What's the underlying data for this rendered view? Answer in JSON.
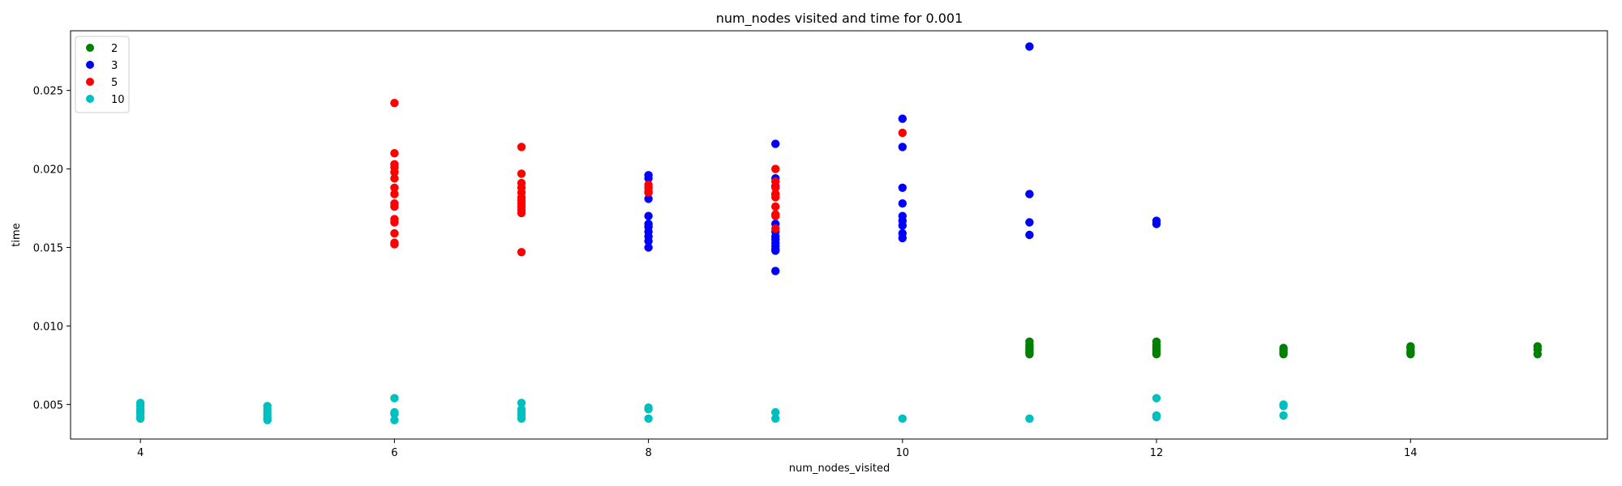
{
  "chart_data": {
    "type": "scatter",
    "title": "num_nodes visited and time for 0.001",
    "xlabel": "num_nodes_visited",
    "ylabel": "time",
    "xlim": [
      3.45,
      15.55
    ],
    "ylim": [
      0.0028,
      0.0288
    ],
    "xticks": [
      4,
      6,
      8,
      10,
      12,
      14
    ],
    "yticks": [
      0.005,
      0.01,
      0.015,
      0.02,
      0.025
    ],
    "ytick_labels": [
      "0.005",
      "0.010",
      "0.015",
      "0.020",
      "0.025"
    ],
    "grid": false,
    "legend": "top-left",
    "series": [
      {
        "name": "2",
        "color": "#008000",
        "x": [
          11,
          11,
          11,
          11,
          11,
          11,
          11,
          11,
          12,
          12,
          12,
          12,
          12,
          12,
          12,
          12,
          13,
          13,
          13,
          13,
          13,
          14,
          14,
          14,
          14,
          14,
          15,
          15,
          15
        ],
        "y": [
          0.009,
          0.0088,
          0.0087,
          0.0086,
          0.0085,
          0.0084,
          0.0083,
          0.0082,
          0.009,
          0.0088,
          0.0087,
          0.0086,
          0.0085,
          0.0084,
          0.0083,
          0.0082,
          0.0086,
          0.0085,
          0.0084,
          0.0083,
          0.0082,
          0.0087,
          0.0086,
          0.0084,
          0.0083,
          0.0082,
          0.0087,
          0.0085,
          0.0082
        ]
      },
      {
        "name": "3",
        "color": "#0000ff",
        "x": [
          8,
          8,
          8,
          8,
          8,
          8,
          8,
          8,
          8,
          8,
          8,
          9,
          9,
          9,
          9,
          9,
          9,
          9,
          9,
          9,
          9,
          9,
          9,
          9,
          10,
          10,
          10,
          10,
          10,
          10,
          10,
          10,
          10,
          11,
          11,
          11,
          11,
          12,
          12
        ],
        "y": [
          0.0196,
          0.0194,
          0.0185,
          0.0181,
          0.017,
          0.0165,
          0.0163,
          0.016,
          0.0157,
          0.0154,
          0.015,
          0.0216,
          0.0194,
          0.0189,
          0.0184,
          0.0165,
          0.016,
          0.0157,
          0.0155,
          0.0153,
          0.0151,
          0.0149,
          0.0148,
          0.0135,
          0.0232,
          0.0214,
          0.0188,
          0.0178,
          0.017,
          0.0167,
          0.0164,
          0.0159,
          0.0156,
          0.0278,
          0.0184,
          0.0166,
          0.0158,
          0.0167,
          0.0165
        ]
      },
      {
        "name": "5",
        "color": "#ff0000",
        "x": [
          6,
          6,
          6,
          6,
          6,
          6,
          6,
          6,
          6,
          6,
          6,
          6,
          6,
          6,
          6,
          7,
          7,
          7,
          7,
          7,
          7,
          7,
          7,
          7,
          7,
          7,
          7,
          8,
          8,
          8,
          8,
          9,
          9,
          9,
          9,
          9,
          9,
          9,
          9,
          9,
          10
        ],
        "y": [
          0.0242,
          0.021,
          0.0203,
          0.0201,
          0.0198,
          0.0194,
          0.0188,
          0.0184,
          0.0178,
          0.0176,
          0.0168,
          0.0166,
          0.0159,
          0.0153,
          0.0152,
          0.0214,
          0.0197,
          0.0191,
          0.0188,
          0.0185,
          0.0182,
          0.018,
          0.0178,
          0.0176,
          0.0174,
          0.0172,
          0.0147,
          0.019,
          0.0188,
          0.0186,
          0.0185,
          0.02,
          0.0192,
          0.0188,
          0.0184,
          0.0182,
          0.0176,
          0.0171,
          0.017,
          0.0162,
          0.0223
        ]
      },
      {
        "name": "10",
        "color": "#00bfbf",
        "x": [
          4,
          4,
          4,
          4,
          4,
          4,
          4,
          4,
          5,
          5,
          5,
          5,
          5,
          5,
          6,
          6,
          6,
          6,
          7,
          7,
          7,
          7,
          7,
          8,
          8,
          8,
          9,
          9,
          10,
          11,
          12,
          12,
          12,
          13,
          13,
          13
        ],
        "y": [
          0.0051,
          0.0049,
          0.0047,
          0.0046,
          0.0045,
          0.0044,
          0.0042,
          0.0041,
          0.0049,
          0.0047,
          0.0045,
          0.0043,
          0.0041,
          0.004,
          0.0054,
          0.0045,
          0.0044,
          0.004,
          0.0051,
          0.0047,
          0.0045,
          0.0043,
          0.0041,
          0.0048,
          0.0047,
          0.0041,
          0.0045,
          0.0041,
          0.0041,
          0.0041,
          0.0054,
          0.0043,
          0.0042,
          0.005,
          0.0049,
          0.0043
        ]
      }
    ]
  }
}
